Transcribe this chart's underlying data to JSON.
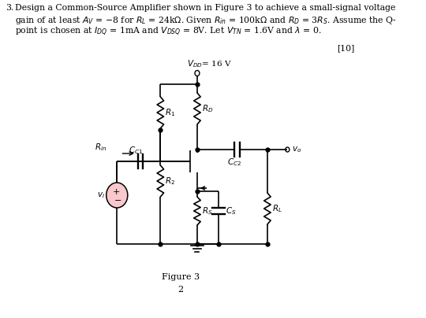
{
  "bg_color": "#ffffff",
  "circuit_color": "#000000",
  "source_fill": "#f8c8cc",
  "fig_width": 5.4,
  "fig_height": 4.04,
  "dpi": 100
}
